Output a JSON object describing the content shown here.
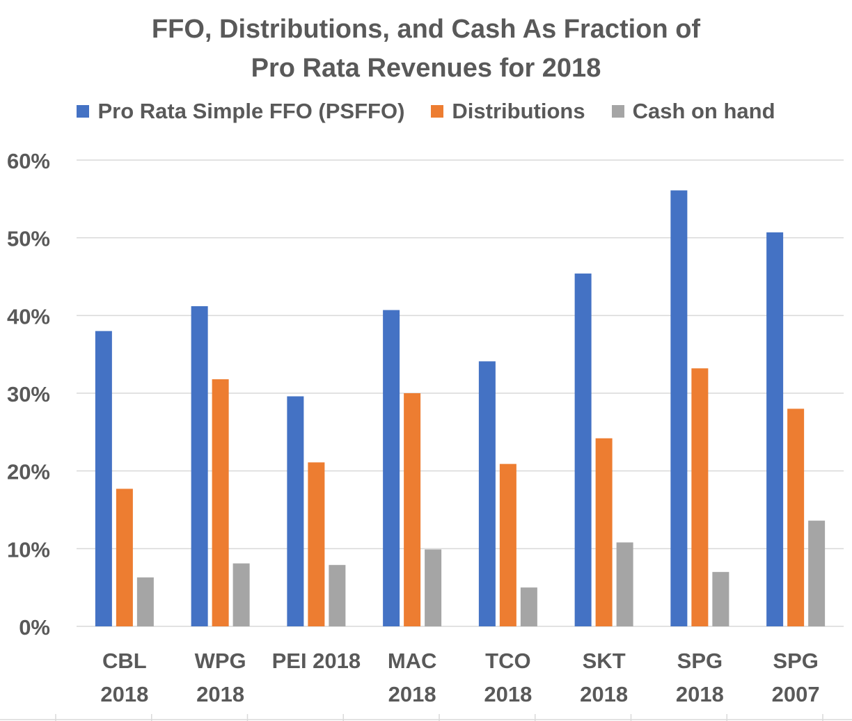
{
  "chart_data": {
    "type": "bar",
    "title_lines": [
      "FFO, Distributions, and Cash As Fraction of",
      "Pro Rata Revenues for 2018"
    ],
    "categories": [
      [
        "CBL",
        "2018"
      ],
      [
        "WPG",
        "2018"
      ],
      [
        "PEI 2018"
      ],
      [
        "MAC",
        "2018"
      ],
      [
        "TCO",
        "2018"
      ],
      [
        "SKT",
        "2018"
      ],
      [
        "SPG",
        "2018"
      ],
      [
        "SPG",
        "2007"
      ]
    ],
    "series": [
      {
        "name": "Pro Rata Simple FFO (PSFFO)",
        "color": "#4472C4",
        "values": [
          38.0,
          41.2,
          29.6,
          40.7,
          34.1,
          45.4,
          56.1,
          50.7
        ]
      },
      {
        "name": "Distributions",
        "color": "#ED7D31",
        "values": [
          17.7,
          31.8,
          21.1,
          30.0,
          20.9,
          24.2,
          33.2,
          28.0
        ]
      },
      {
        "name": "Cash on hand",
        "color": "#A5A5A5",
        "values": [
          6.3,
          8.1,
          7.9,
          9.9,
          5.0,
          10.8,
          7.0,
          13.6
        ]
      }
    ],
    "y_ticks": [
      "0%",
      "10%",
      "20%",
      "30%",
      "40%",
      "50%",
      "60%"
    ],
    "ylim": [
      0,
      60
    ],
    "y_unit": "percent",
    "grid": true,
    "legend_position": "top"
  }
}
